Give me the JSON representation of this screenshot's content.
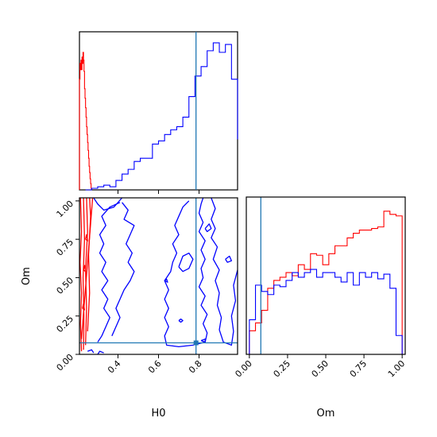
{
  "colors": {
    "red": "#ff0000",
    "blue": "#0000ff",
    "truth": "#1f77b4",
    "frame": "#000000"
  },
  "chart_data": [
    {
      "type": "histogram",
      "panel": "top-left",
      "xlim": [
        0.21,
        0.99
      ],
      "truth_x": 0.785,
      "x_ticks": [
        0.4,
        0.6,
        0.8
      ],
      "series": [
        {
          "color": "red",
          "edges": [
            0.21,
            0.2125,
            0.215,
            0.2175,
            0.22,
            0.2225,
            0.225,
            0.2275,
            0.23,
            0.2325,
            0.235,
            0.2375,
            0.24,
            0.2425,
            0.245,
            0.2475,
            0.25,
            0.2525,
            0.255,
            0.2575,
            0.26,
            0.2625,
            0.265,
            0.2675,
            0.27
          ],
          "values": [
            0.7,
            0.8,
            0.76,
            0.82,
            0.76,
            0.84,
            0.8,
            0.87,
            0.82,
            0.75,
            0.64,
            0.58,
            0.52,
            0.46,
            0.4,
            0.35,
            0.3,
            0.25,
            0.2,
            0.15,
            0.11,
            0.07,
            0.04,
            0.01
          ]
        },
        {
          "color": "blue",
          "edges": [
            0.24,
            0.27,
            0.3,
            0.33,
            0.36,
            0.39,
            0.42,
            0.45,
            0.48,
            0.51,
            0.54,
            0.57,
            0.6,
            0.63,
            0.66,
            0.69,
            0.72,
            0.75,
            0.78,
            0.81,
            0.84,
            0.87,
            0.9,
            0.93,
            0.96,
            0.99
          ],
          "values": [
            0.0,
            0.01,
            0.02,
            0.03,
            0.02,
            0.06,
            0.1,
            0.13,
            0.18,
            0.2,
            0.2,
            0.29,
            0.31,
            0.35,
            0.38,
            0.4,
            0.46,
            0.59,
            0.72,
            0.78,
            0.88,
            0.93,
            0.87,
            0.92,
            0.7,
            0.32
          ]
        }
      ]
    },
    {
      "type": "contour",
      "panel": "bottom-left",
      "xlabel": "H0",
      "ylabel": "Om",
      "xlim": [
        0.21,
        0.99
      ],
      "ylim": [
        0.0,
        1.02
      ],
      "truth_x": 0.785,
      "truth_y": 0.075,
      "x_ticks": [
        0.4,
        0.6,
        0.8
      ],
      "y_ticks": [
        0.0,
        0.25,
        0.5,
        0.75,
        1.0
      ],
      "contours": [
        {
          "color": "blue",
          "points": [
            [
              0.82,
              1.02
            ],
            [
              0.81,
              0.98
            ],
            [
              0.8,
              0.92
            ],
            [
              0.82,
              0.86
            ],
            [
              0.8,
              0.8
            ],
            [
              0.83,
              0.74
            ],
            [
              0.81,
              0.68
            ],
            [
              0.83,
              0.62
            ],
            [
              0.81,
              0.56
            ],
            [
              0.82,
              0.5
            ],
            [
              0.8,
              0.44
            ],
            [
              0.83,
              0.38
            ],
            [
              0.81,
              0.32
            ],
            [
              0.84,
              0.26
            ],
            [
              0.82,
              0.2
            ],
            [
              0.84,
              0.14
            ],
            [
              0.83,
              0.08
            ],
            [
              0.77,
              0.06
            ],
            [
              0.7,
              0.05
            ],
            [
              0.64,
              0.06
            ],
            [
              0.63,
              0.12
            ],
            [
              0.65,
              0.18
            ],
            [
              0.63,
              0.24
            ],
            [
              0.65,
              0.3
            ],
            [
              0.63,
              0.36
            ],
            [
              0.65,
              0.42
            ],
            [
              0.63,
              0.48
            ],
            [
              0.66,
              0.54
            ],
            [
              0.67,
              0.6
            ],
            [
              0.69,
              0.66
            ],
            [
              0.67,
              0.72
            ],
            [
              0.7,
              0.78
            ],
            [
              0.68,
              0.84
            ],
            [
              0.7,
              0.9
            ],
            [
              0.72,
              0.96
            ],
            [
              0.75,
              1.0
            ]
          ]
        },
        {
          "color": "blue",
          "points": [
            [
              0.86,
              1.02
            ],
            [
              0.88,
              0.95
            ],
            [
              0.86,
              0.88
            ],
            [
              0.88,
              0.82
            ],
            [
              0.86,
              0.76
            ],
            [
              0.89,
              0.7
            ],
            [
              0.87,
              0.62
            ],
            [
              0.9,
              0.55
            ],
            [
              0.88,
              0.48
            ],
            [
              0.9,
              0.4
            ],
            [
              0.89,
              0.32
            ],
            [
              0.91,
              0.24
            ],
            [
              0.9,
              0.16
            ],
            [
              0.92,
              0.08
            ],
            [
              0.96,
              0.06
            ],
            [
              0.97,
              0.15
            ],
            [
              0.96,
              0.25
            ],
            [
              0.98,
              0.35
            ],
            [
              0.97,
              0.45
            ],
            [
              0.99,
              0.55
            ]
          ]
        },
        {
          "color": "blue",
          "points": [
            [
              0.28,
              1.02
            ],
            [
              0.3,
              0.98
            ],
            [
              0.33,
              0.94
            ],
            [
              0.38,
              0.96
            ],
            [
              0.42,
              1.02
            ]
          ]
        },
        {
          "color": "blue",
          "points": [
            [
              0.41,
              0.99
            ],
            [
              0.36,
              0.96
            ],
            [
              0.32,
              0.9
            ],
            [
              0.34,
              0.84
            ],
            [
              0.31,
              0.78
            ],
            [
              0.33,
              0.72
            ],
            [
              0.31,
              0.66
            ],
            [
              0.34,
              0.6
            ],
            [
              0.32,
              0.54
            ],
            [
              0.35,
              0.48
            ],
            [
              0.32,
              0.42
            ],
            [
              0.35,
              0.36
            ],
            [
              0.33,
              0.3
            ],
            [
              0.36,
              0.24
            ],
            [
              0.34,
              0.18
            ],
            [
              0.32,
              0.12
            ],
            [
              0.3,
              0.08
            ]
          ]
        },
        {
          "color": "blue",
          "points": [
            [
              0.42,
              0.99
            ],
            [
              0.45,
              0.94
            ],
            [
              0.43,
              0.88
            ],
            [
              0.48,
              0.84
            ],
            [
              0.46,
              0.78
            ],
            [
              0.44,
              0.72
            ],
            [
              0.47,
              0.66
            ],
            [
              0.45,
              0.6
            ],
            [
              0.48,
              0.54
            ],
            [
              0.46,
              0.48
            ],
            [
              0.43,
              0.42
            ],
            [
              0.41,
              0.36
            ],
            [
              0.39,
              0.3
            ],
            [
              0.41,
              0.24
            ],
            [
              0.39,
              0.18
            ],
            [
              0.37,
              0.12
            ]
          ]
        },
        {
          "color": "blue",
          "points": [
            [
              0.7,
              0.57
            ],
            [
              0.72,
              0.64
            ],
            [
              0.75,
              0.66
            ],
            [
              0.77,
              0.62
            ],
            [
              0.75,
              0.56
            ],
            [
              0.72,
              0.54
            ],
            [
              0.7,
              0.57
            ]
          ]
        },
        {
          "color": "blue",
          "points": [
            [
              0.83,
              0.82
            ],
            [
              0.85,
              0.85
            ],
            [
              0.86,
              0.82
            ],
            [
              0.84,
              0.8
            ],
            [
              0.83,
              0.82
            ]
          ]
        },
        {
          "color": "blue",
          "points": [
            [
              0.7,
              0.22
            ],
            [
              0.71,
              0.23
            ],
            [
              0.72,
              0.22
            ],
            [
              0.71,
              0.21
            ],
            [
              0.7,
              0.22
            ]
          ]
        },
        {
          "color": "blue",
          "points": [
            [
              0.63,
              0.48
            ],
            [
              0.64,
              0.49
            ],
            [
              0.645,
              0.47
            ],
            [
              0.63,
              0.48
            ]
          ]
        },
        {
          "color": "blue",
          "points": [
            [
              0.81,
              0.09
            ],
            [
              0.83,
              0.1
            ],
            [
              0.83,
              0.08
            ],
            [
              0.81,
              0.09
            ]
          ]
        },
        {
          "color": "blue",
          "points": [
            [
              0.93,
              0.62
            ],
            [
              0.95,
              0.64
            ],
            [
              0.96,
              0.61
            ],
            [
              0.94,
              0.6
            ],
            [
              0.93,
              0.62
            ]
          ]
        },
        {
          "color": "blue",
          "points": [
            [
              0.25,
              0.02
            ],
            [
              0.27,
              0.03
            ],
            [
              0.28,
              0.01
            ]
          ]
        },
        {
          "color": "blue",
          "points": [
            [
              0.3,
              0.0
            ],
            [
              0.31,
              0.02
            ],
            [
              0.33,
              0.01
            ]
          ]
        },
        {
          "color": "red",
          "points": [
            [
              0.22,
              0.02
            ],
            [
              0.215,
              0.2
            ],
            [
              0.22,
              0.4
            ],
            [
              0.213,
              0.6
            ],
            [
              0.22,
              0.8
            ],
            [
              0.215,
              1.02
            ]
          ]
        },
        {
          "color": "red",
          "points": [
            [
              0.23,
              0.03
            ],
            [
              0.232,
              0.25
            ],
            [
              0.228,
              0.5
            ],
            [
              0.235,
              0.75
            ],
            [
              0.23,
              1.02
            ]
          ]
        },
        {
          "color": "red",
          "points": [
            [
              0.24,
              0.06
            ],
            [
              0.245,
              0.3
            ],
            [
              0.24,
              0.55
            ],
            [
              0.25,
              0.8
            ],
            [
              0.245,
              1.02
            ]
          ]
        },
        {
          "color": "red",
          "points": [
            [
              0.25,
              0.15
            ],
            [
              0.26,
              0.4
            ],
            [
              0.255,
              0.65
            ],
            [
              0.265,
              0.9
            ],
            [
              0.26,
              1.02
            ]
          ]
        },
        {
          "color": "red",
          "points": [
            [
              0.22,
              0.1
            ],
            [
              0.235,
              0.35
            ],
            [
              0.25,
              0.6
            ],
            [
              0.265,
              0.85
            ],
            [
              0.275,
              1.02
            ]
          ]
        },
        {
          "color": "red",
          "points": [
            [
              0.24,
              0.75
            ],
            [
              0.245,
              0.78
            ],
            [
              0.25,
              0.74
            ],
            [
              0.24,
              0.75
            ]
          ]
        },
        {
          "color": "red",
          "points": [
            [
              0.23,
              0.55
            ],
            [
              0.236,
              0.58
            ],
            [
              0.24,
              0.54
            ],
            [
              0.23,
              0.55
            ]
          ]
        },
        {
          "color": "red",
          "points": [
            [
              0.225,
              0.3
            ],
            [
              0.23,
              0.33
            ],
            [
              0.235,
              0.29
            ],
            [
              0.225,
              0.3
            ]
          ]
        }
      ]
    },
    {
      "type": "histogram",
      "panel": "bottom-right",
      "xlabel": "Om",
      "xlim": [
        -0.02,
        1.02
      ],
      "truth_x": 0.075,
      "x_ticks": [
        0.0,
        0.25,
        0.5,
        0.75,
        1.0
      ],
      "series": [
        {
          "color": "red",
          "edges": [
            0.0,
            0.04,
            0.08,
            0.12,
            0.16,
            0.2,
            0.24,
            0.28,
            0.32,
            0.36,
            0.4,
            0.44,
            0.48,
            0.52,
            0.56,
            0.6,
            0.64,
            0.68,
            0.72,
            0.76,
            0.8,
            0.84,
            0.88,
            0.92,
            0.96,
            1.0
          ],
          "values": [
            0.15,
            0.2,
            0.28,
            0.42,
            0.47,
            0.49,
            0.52,
            0.5,
            0.57,
            0.54,
            0.64,
            0.63,
            0.57,
            0.64,
            0.69,
            0.69,
            0.74,
            0.77,
            0.79,
            0.79,
            0.8,
            0.81,
            0.91,
            0.89,
            0.88
          ]
        },
        {
          "color": "blue",
          "edges": [
            0.0,
            0.04,
            0.08,
            0.12,
            0.16,
            0.2,
            0.24,
            0.28,
            0.32,
            0.36,
            0.4,
            0.44,
            0.48,
            0.52,
            0.56,
            0.6,
            0.64,
            0.68,
            0.72,
            0.76,
            0.8,
            0.84,
            0.88,
            0.92,
            0.96,
            1.0
          ],
          "values": [
            0.22,
            0.44,
            0.4,
            0.38,
            0.44,
            0.43,
            0.47,
            0.52,
            0.49,
            0.52,
            0.54,
            0.49,
            0.52,
            0.52,
            0.49,
            0.46,
            0.52,
            0.44,
            0.52,
            0.49,
            0.52,
            0.48,
            0.51,
            0.42,
            0.12
          ]
        }
      ]
    }
  ]
}
